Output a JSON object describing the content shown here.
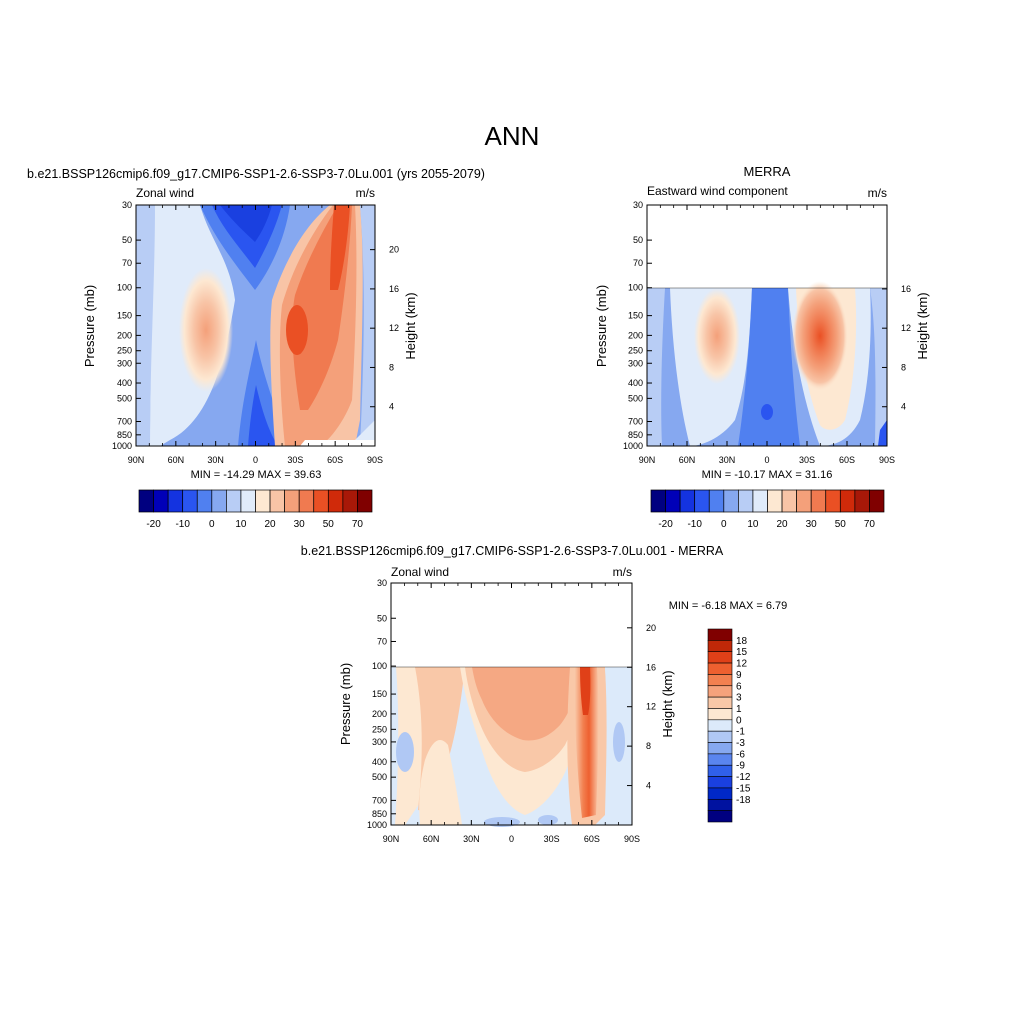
{
  "page_title": "ANN",
  "colors": {
    "panel_scale": [
      "#000080",
      "#0000b8",
      "#1433e0",
      "#2a55f0",
      "#5080f0",
      "#86a8f0",
      "#b8cdf5",
      "#e0ebfa",
      "#fde8d2",
      "#f8c4a6",
      "#f4a07a",
      "#f07a50",
      "#ea5024",
      "#d02a0a",
      "#a81808",
      "#800000"
    ],
    "diff_scale": [
      "#000080",
      "#0012a0",
      "#0028c8",
      "#1a40e0",
      "#3060ea",
      "#5a85ef",
      "#86a8f0",
      "#b0c8f4",
      "#dceafa",
      "#fde8d2",
      "#f9c8a8",
      "#f5a27c",
      "#f28050",
      "#ee6030",
      "#e04018",
      "#c02808",
      "#800000"
    ]
  },
  "panels": [
    {
      "title": "b.e21.BSSP126cmip6.f09_g17.CMIP6-SSP1-2.6-SSP3-7.0Lu.001 (yrs 2055-2079)",
      "variable_label": "Zonal wind",
      "units_label": "m/s",
      "ylabel": "Pressure (mb)",
      "y2label": "Height (km)",
      "stats": "MIN = -14.29  MAX =  39.63"
    },
    {
      "title": "MERRA",
      "variable_label": "Eastward wind component",
      "units_label": "m/s",
      "ylabel": "Pressure (mb)",
      "y2label": "Height (km)",
      "stats": "MIN = -10.17  MAX =  31.16"
    },
    {
      "title": "b.e21.BSSP126cmip6.f09_g17.CMIP6-SSP1-2.6-SSP3-7.0Lu.001 - MERRA",
      "variable_label": "Zonal wind",
      "units_label": "m/s",
      "ylabel": "Pressure (mb)",
      "y2label": "Height (km)",
      "stats": "MIN =  -6.18  MAX =   6.79"
    }
  ],
  "colorbar_labels": [
    "-20",
    "-10",
    "0",
    "10",
    "20",
    "30",
    "50",
    "70"
  ],
  "diff_colorbar_labels": [
    "18",
    "15",
    "12",
    "9",
    "6",
    "3",
    "1",
    "0",
    "-1",
    "-3",
    "-6",
    "-9",
    "-12",
    "-15",
    "-18"
  ],
  "chart_data": [
    {
      "type": "heatmap",
      "title": "b.e21.BSSP126cmip6.f09_g17.CMIP6-SSP1-2.6-SSP3-7.0Lu.001 (yrs 2055-2079)",
      "xlabel": "",
      "ylabel": "Pressure (mb)",
      "y2label": "Height (km)",
      "x_ticks": [
        "90N",
        "60N",
        "30N",
        "0",
        "30S",
        "60S",
        "90S"
      ],
      "y_ticks": [
        30,
        50,
        70,
        100,
        150,
        200,
        250,
        300,
        400,
        500,
        700,
        850,
        1000
      ],
      "y2_ticks": [
        4,
        8,
        12,
        16,
        20
      ],
      "ylim": [
        1000,
        30
      ],
      "y_scale": "log",
      "contour_levels": [
        -20,
        -15,
        -10,
        -5,
        0,
        5,
        10,
        15,
        20,
        25,
        30,
        40,
        50,
        60,
        70
      ],
      "min": -14.29,
      "max": 39.63,
      "features": [
        {
          "lat": 22,
          "p": 200,
          "value": 18
        },
        {
          "lat": -40,
          "p": 200,
          "value": 30
        },
        {
          "lat": -55,
          "p": 30,
          "value": 39.63
        },
        {
          "lat": 0,
          "p": 40,
          "value": -14.29
        }
      ]
    },
    {
      "type": "heatmap",
      "title": "MERRA",
      "xlabel": "",
      "ylabel": "Pressure (mb)",
      "y2label": "Height (km)",
      "x_ticks": [
        "90N",
        "60N",
        "30N",
        "0",
        "30S",
        "60S",
        "90S"
      ],
      "y_ticks": [
        30,
        50,
        70,
        100,
        150,
        200,
        250,
        300,
        400,
        500,
        700,
        850,
        1000
      ],
      "y2_ticks": [
        4,
        8,
        12,
        16
      ],
      "ylim": [
        1000,
        30
      ],
      "y_scale": "log",
      "data_top_p": 100,
      "contour_levels": [
        -20,
        -15,
        -10,
        -5,
        0,
        5,
        10,
        15,
        20,
        25,
        30,
        40,
        50,
        60,
        70
      ],
      "min": -10.17,
      "max": 31.16,
      "features": [
        {
          "lat": 25,
          "p": 200,
          "value": 20
        },
        {
          "lat": -40,
          "p": 200,
          "value": 31.16
        },
        {
          "lat": 0,
          "p": 700,
          "value": -10.17
        }
      ]
    },
    {
      "type": "heatmap",
      "title": "b.e21.BSSP126cmip6.f09_g17.CMIP6-SSP1-2.6-SSP3-7.0Lu.001 - MERRA",
      "xlabel": "",
      "ylabel": "Pressure (mb)",
      "y2label": "Height (km)",
      "x_ticks": [
        "90N",
        "60N",
        "30N",
        "0",
        "30S",
        "60S",
        "90S"
      ],
      "y_ticks": [
        30,
        50,
        70,
        100,
        150,
        200,
        250,
        300,
        400,
        500,
        700,
        850,
        1000
      ],
      "y2_ticks": [
        4,
        8,
        12,
        16,
        20
      ],
      "ylim": [
        1000,
        30
      ],
      "y_scale": "log",
      "data_top_p": 100,
      "contour_levels": [
        -18,
        -15,
        -12,
        -9,
        -6,
        -3,
        -1,
        0,
        1,
        3,
        6,
        9,
        12,
        15,
        18
      ],
      "min": -6.18,
      "max": 6.79,
      "features": [
        {
          "lat": -50,
          "p": 150,
          "value": 6.79
        },
        {
          "lat": -10,
          "p": 200,
          "value": 4
        },
        {
          "lat": 45,
          "p": 200,
          "value": 2
        },
        {
          "lat": 85,
          "p": 350,
          "value": -3
        },
        {
          "lat": -85,
          "p": 300,
          "value": -3
        },
        {
          "lat": -20,
          "p": 900,
          "value": -6.18
        }
      ]
    }
  ]
}
